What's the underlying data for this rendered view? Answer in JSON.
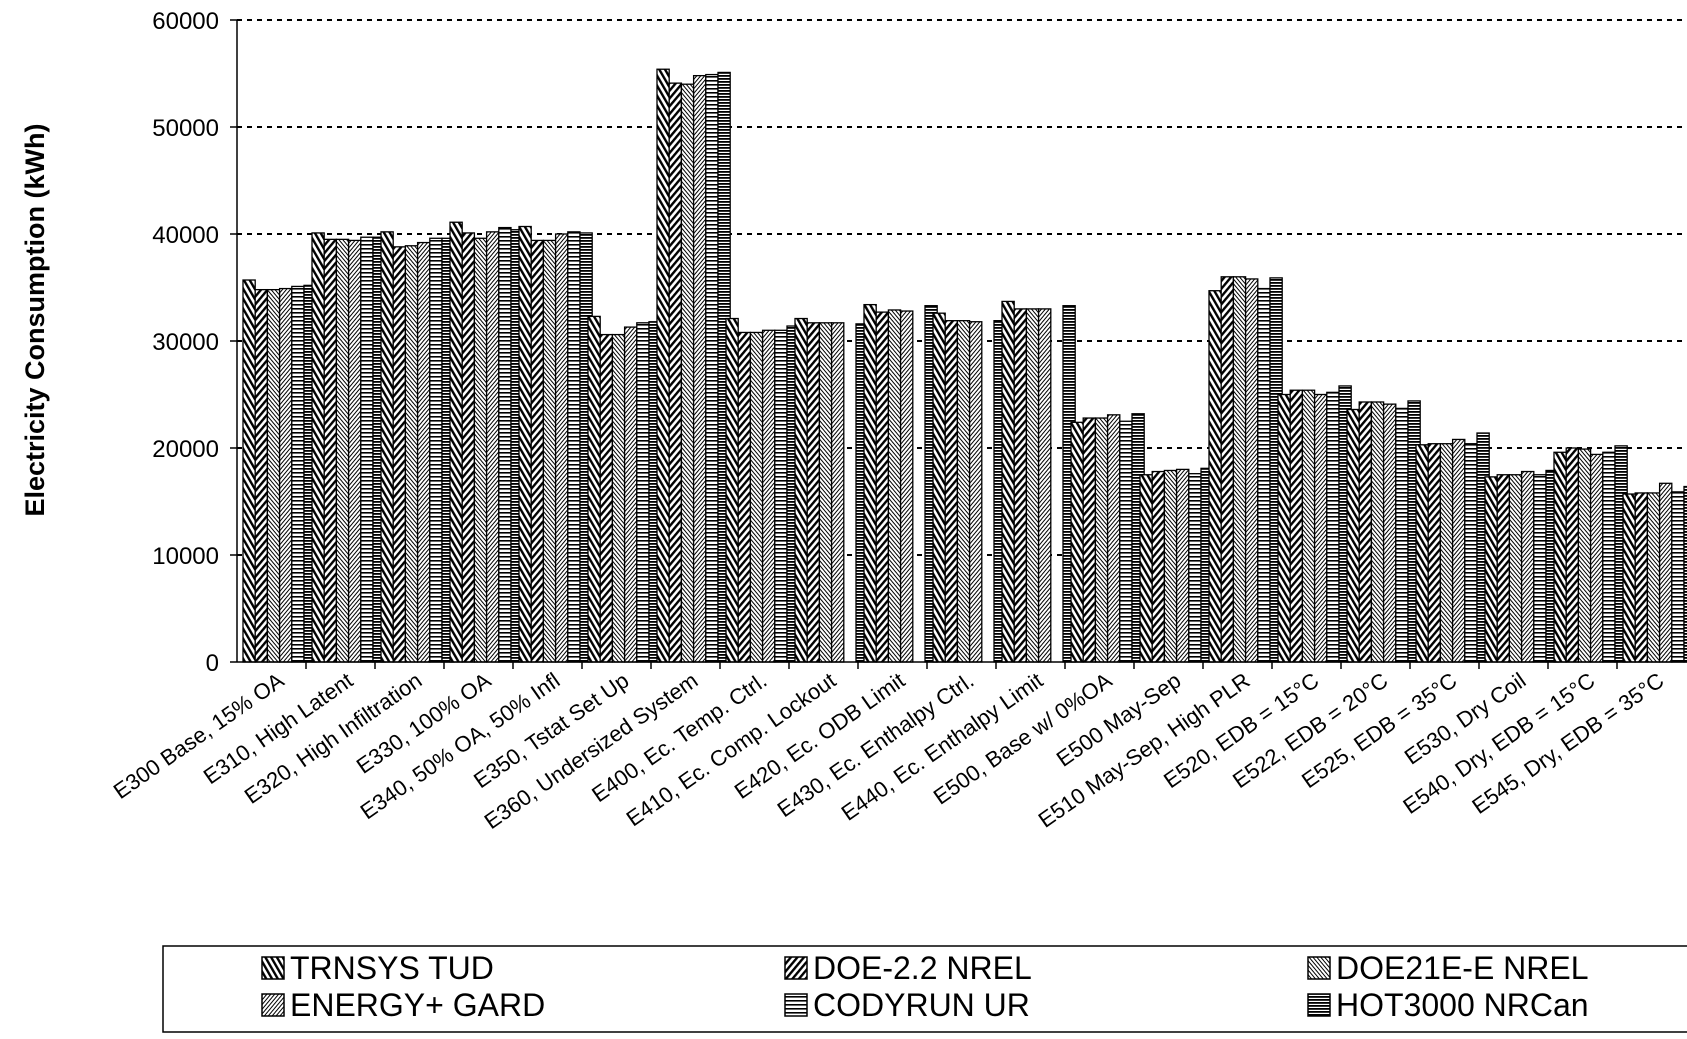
{
  "chart_data": {
    "type": "bar",
    "title": "",
    "xlabel": "",
    "ylabel": "Electricity Consumption (kWh)",
    "ylim": [
      0,
      60000
    ],
    "yticks": [
      0,
      10000,
      20000,
      30000,
      40000,
      50000,
      60000
    ],
    "grid": "horizontal dashed",
    "legend_position": "bottom",
    "categories": [
      "E300 Base, 15% OA",
      "E310, High Latent",
      "E320, High Infiltration",
      "E330, 100% OA",
      "E340, 50% OA, 50% Infl",
      "E350, Tstat Set Up",
      "E360, Undersized System",
      "E400, Ec. Temp. Ctrl.",
      "E410, Ec. Comp. Lockout",
      "E420, Ec. ODB Limit",
      "E430, Ec. Enthalpy Ctrl.",
      "E440, Ec. Enthalpy Limit",
      "E500, Base w/ 0%OA",
      "E500 May-Sep",
      "E510 May-Sep, High PLR",
      "E520, EDB = 15°C",
      "E522, EDB = 20°C",
      "E525, EDB = 35°C",
      "E530, Dry Coil",
      "E540, Dry, EDB = 15°C",
      "E545, Dry, EDB = 35°C"
    ],
    "series": [
      {
        "name": "TRNSYS TUD",
        "values": [
          35700,
          40100,
          40200,
          41100,
          40700,
          32300,
          55400,
          32100,
          32100,
          33400,
          32600,
          33700,
          22400,
          17500,
          34700,
          25000,
          23600,
          20300,
          17300,
          19600,
          15700
        ]
      },
      {
        "name": "DOE-2.2 NREL",
        "values": [
          34800,
          39500,
          38800,
          40100,
          39400,
          30600,
          54100,
          30800,
          31700,
          32700,
          31900,
          33000,
          22800,
          17800,
          36000,
          25400,
          24300,
          20400,
          17500,
          20000,
          15800
        ]
      },
      {
        "name": "DOE21E-E NREL",
        "values": [
          34800,
          39500,
          38900,
          39600,
          39400,
          30600,
          54000,
          30800,
          31700,
          32900,
          31900,
          33000,
          22800,
          17900,
          36000,
          25400,
          24300,
          20400,
          17500,
          19900,
          15800
        ]
      },
      {
        "name": "ENERGY+ GARD",
        "values": [
          34900,
          39400,
          39200,
          40200,
          40000,
          31300,
          54800,
          31000,
          31700,
          32800,
          31800,
          33000,
          23100,
          18000,
          35800,
          25000,
          24100,
          20800,
          17800,
          19400,
          16700
        ]
      },
      {
        "name": "CODYRUN UR",
        "values": [
          35100,
          39700,
          39600,
          40600,
          40200,
          31700,
          54900,
          31000,
          null,
          null,
          null,
          null,
          22500,
          17600,
          34900,
          25200,
          23700,
          20400,
          17500,
          19600,
          15900
        ]
      },
      {
        "name": "HOT3000 NRCan",
        "values": [
          35200,
          39700,
          39600,
          40400,
          40100,
          31800,
          55100,
          31400,
          31600,
          33300,
          31900,
          33300,
          23200,
          18100,
          35900,
          25800,
          24400,
          21400,
          17900,
          20200,
          16400
        ]
      }
    ]
  },
  "colors": {
    "bar_stroke": "#000000",
    "bar_fill": "#ffffff",
    "grid": "#000000"
  }
}
